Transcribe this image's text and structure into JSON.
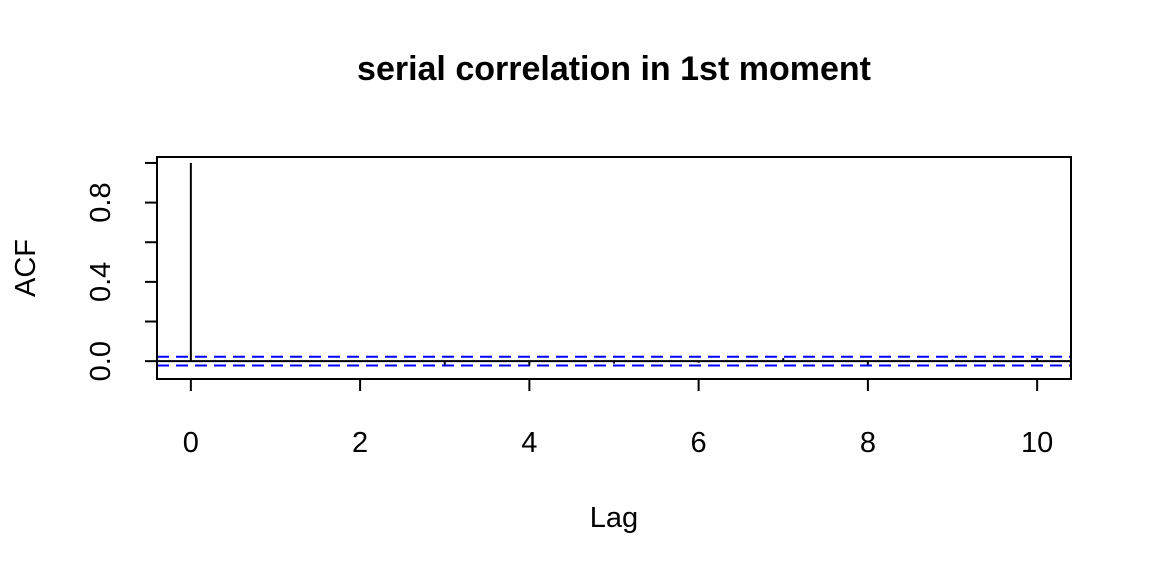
{
  "chart_data": {
    "type": "bar",
    "title": "serial correlation in 1st moment",
    "xlabel": "Lag",
    "ylabel": "ACF",
    "x": [
      0,
      1,
      2,
      3,
      4,
      5,
      6,
      7,
      8,
      9,
      10
    ],
    "values": [
      1.0,
      0.002,
      -0.005,
      -0.018,
      -0.022,
      -0.012,
      -0.008,
      0.015,
      -0.018,
      0.008,
      0.015
    ],
    "xlim": [
      -0.4,
      10.4
    ],
    "ylim": [
      -0.09,
      1.03
    ],
    "x_ticks": [
      0,
      2,
      4,
      6,
      8,
      10
    ],
    "x_tick_labels": [
      "0",
      "2",
      "4",
      "6",
      "8",
      "10"
    ],
    "y_ticks": [
      0.0,
      0.2,
      0.4,
      0.6,
      0.8,
      1.0
    ],
    "y_tick_labels": [
      "0.0",
      "",
      "0.4",
      "",
      "0.8",
      ""
    ],
    "confidence_bound": 0.022,
    "grid": false,
    "colors": {
      "bars": "#000000",
      "zero_line": "#000000",
      "confidence_lines": "#0000ff",
      "frame": "#000000"
    }
  }
}
